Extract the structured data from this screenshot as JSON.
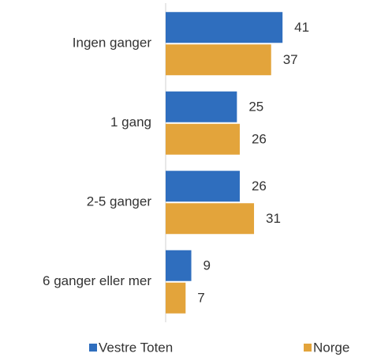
{
  "chart_data": {
    "type": "bar",
    "orientation": "horizontal",
    "categories": [
      "Ingen ganger",
      "1 gang",
      "2-5 ganger",
      "6 ganger eller mer"
    ],
    "series": [
      {
        "name": "Vestre Toten",
        "color": "#2f6ebe",
        "values": [
          41,
          25,
          26,
          9
        ]
      },
      {
        "name": "Norge",
        "color": "#e3a43b",
        "values": [
          37,
          26,
          31,
          7
        ]
      }
    ],
    "xlim": [
      0,
      70
    ],
    "legend": "bottom"
  }
}
